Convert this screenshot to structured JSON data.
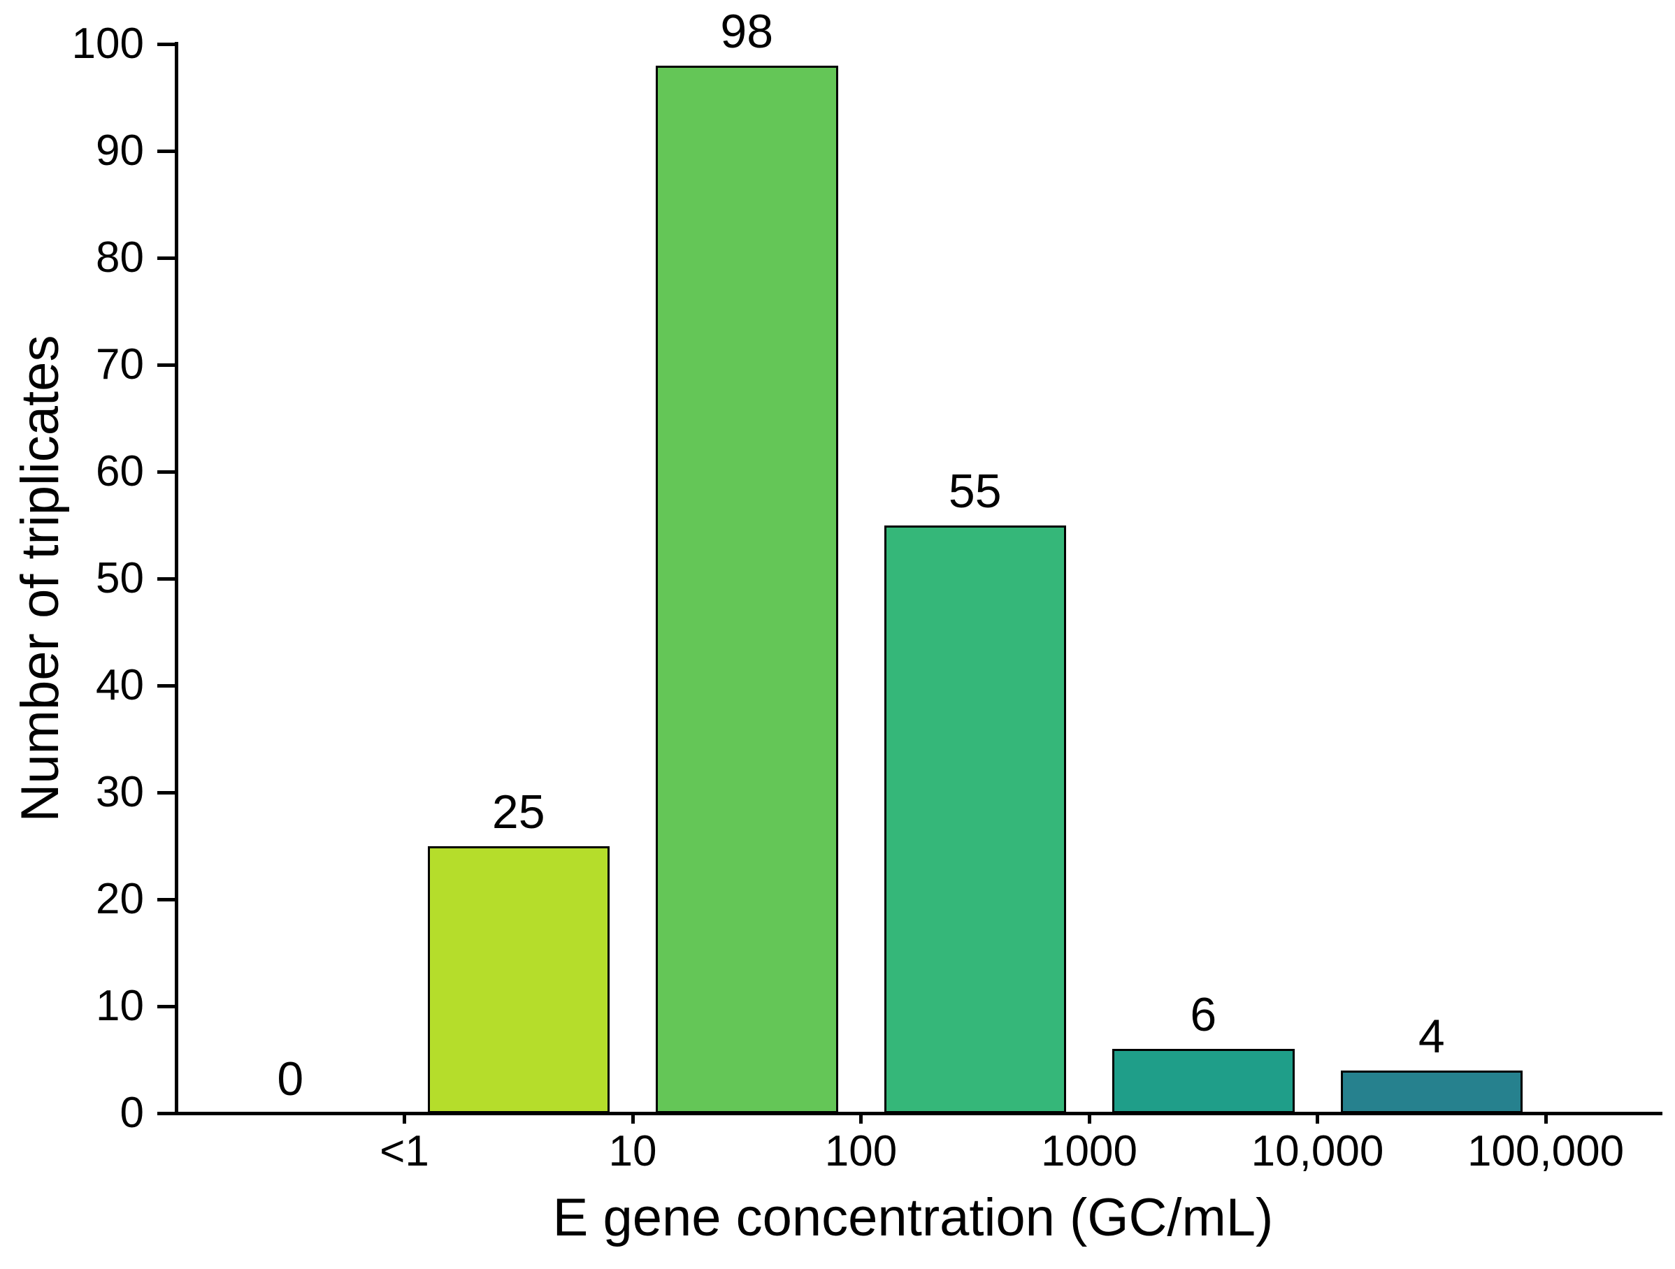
{
  "chart_data": {
    "type": "bar",
    "title": "",
    "xlabel": "E gene concentration (GC/mL)",
    "ylabel": "Number of triplicates",
    "x_tick_labels": [
      "<1",
      "10",
      "100",
      "1000",
      "10,000",
      "100,000"
    ],
    "y_tick_labels": [
      "0",
      "10",
      "20",
      "30",
      "40",
      "50",
      "60",
      "70",
      "80",
      "90",
      "100"
    ],
    "ylim": [
      0,
      100
    ],
    "grid": false,
    "legend": "none",
    "axis_color": "#000000",
    "text_color": "#000000",
    "bar_border_color": "#000000",
    "bins": [
      {
        "label": "0",
        "value": 0,
        "color": null
      },
      {
        "label": "25",
        "value": 25,
        "color": "#b5dd2b"
      },
      {
        "label": "98",
        "value": 98,
        "color": "#64c657"
      },
      {
        "label": "55",
        "value": 55,
        "color": "#35b779"
      },
      {
        "label": "6",
        "value": 6,
        "color": "#1f9e89"
      },
      {
        "label": "4",
        "value": 4,
        "color": "#26818e"
      }
    ]
  }
}
